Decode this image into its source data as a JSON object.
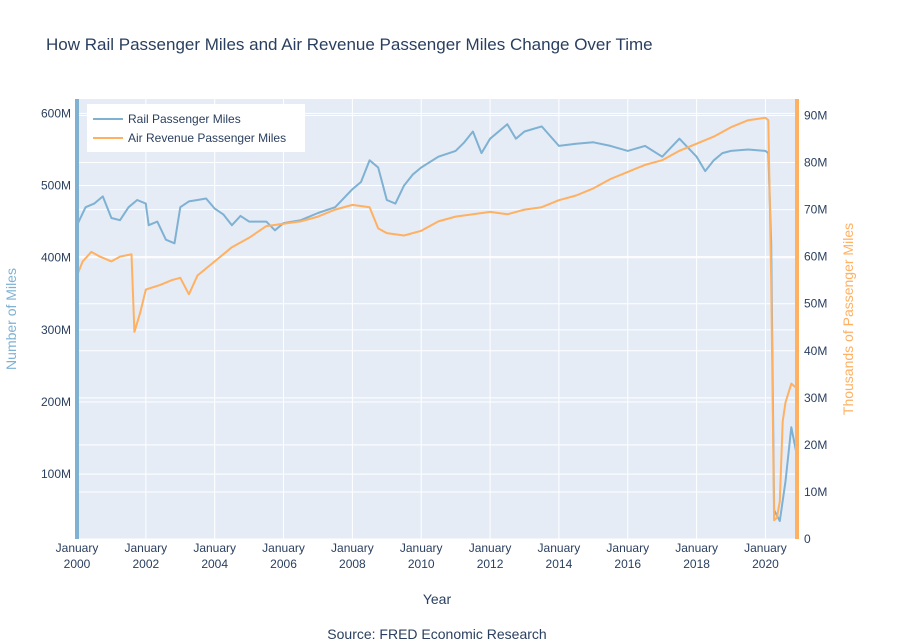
{
  "chart_data": {
    "type": "line",
    "title": "How Rail Passenger Miles and Air Revenue Passenger Miles Change Over Time",
    "xlabel": "Year",
    "ylabel_left": "Number of Miles",
    "ylabel_right": "Thousands of Passenger Miles",
    "source": "Source: FRED Economic Research",
    "x_range": [
      "2000-01",
      "2020-12"
    ],
    "y_left_range": [
      10000000,
      620000000
    ],
    "y_right_range": [
      0,
      93500000
    ],
    "x_ticks": [
      {
        "year": 2000,
        "month": "January",
        "year_label": "2000"
      },
      {
        "year": 2002,
        "month": "January",
        "year_label": "2002"
      },
      {
        "year": 2004,
        "month": "January",
        "year_label": "2004"
      },
      {
        "year": 2006,
        "month": "January",
        "year_label": "2006"
      },
      {
        "year": 2008,
        "month": "January",
        "year_label": "2008"
      },
      {
        "year": 2010,
        "month": "January",
        "year_label": "2010"
      },
      {
        "year": 2012,
        "month": "January",
        "year_label": "2012"
      },
      {
        "year": 2014,
        "month": "January",
        "year_label": "2014"
      },
      {
        "year": 2016,
        "month": "January",
        "year_label": "2016"
      },
      {
        "year": 2018,
        "month": "January",
        "year_label": "2018"
      },
      {
        "year": 2020,
        "month": "January",
        "year_label": "2020"
      }
    ],
    "y_left_ticks": [
      {
        "value": 100000000,
        "label": "100M"
      },
      {
        "value": 200000000,
        "label": "200M"
      },
      {
        "value": 300000000,
        "label": "300M"
      },
      {
        "value": 400000000,
        "label": "400M"
      },
      {
        "value": 500000000,
        "label": "500M"
      },
      {
        "value": 600000000,
        "label": "600M"
      }
    ],
    "y_right_ticks": [
      {
        "value": 0,
        "label": "0"
      },
      {
        "value": 10000000,
        "label": "10M"
      },
      {
        "value": 20000000,
        "label": "20M"
      },
      {
        "value": 30000000,
        "label": "30M"
      },
      {
        "value": 40000000,
        "label": "40M"
      },
      {
        "value": 50000000,
        "label": "50M"
      },
      {
        "value": 60000000,
        "label": "60M"
      },
      {
        "value": 70000000,
        "label": "70M"
      },
      {
        "value": 80000000,
        "label": "80M"
      },
      {
        "value": 90000000,
        "label": "90M"
      }
    ],
    "grid": true,
    "legend": "top-left",
    "colors": {
      "rail": "#7fb1d3",
      "air": "#ffb061",
      "plot_bg": "#e5ecf6",
      "grid": "#ffffff",
      "text": "#2a3f5f"
    },
    "series": [
      {
        "name": "Rail Passenger Miles",
        "axis": "left",
        "points": [
          [
            "2000-01",
            445000000
          ],
          [
            "2000-04",
            470000000
          ],
          [
            "2000-07",
            475000000
          ],
          [
            "2000-10",
            485000000
          ],
          [
            "2001-01",
            455000000
          ],
          [
            "2001-04",
            452000000
          ],
          [
            "2001-07",
            470000000
          ],
          [
            "2001-10",
            480000000
          ],
          [
            "2002-01",
            475000000
          ],
          [
            "2002-02",
            445000000
          ],
          [
            "2002-05",
            450000000
          ],
          [
            "2002-08",
            425000000
          ],
          [
            "2002-11",
            420000000
          ],
          [
            "2003-01",
            470000000
          ],
          [
            "2003-04",
            478000000
          ],
          [
            "2003-07",
            480000000
          ],
          [
            "2003-10",
            482000000
          ],
          [
            "2004-01",
            468000000
          ],
          [
            "2004-04",
            460000000
          ],
          [
            "2004-07",
            445000000
          ],
          [
            "2004-10",
            458000000
          ],
          [
            "2005-01",
            450000000
          ],
          [
            "2005-07",
            450000000
          ],
          [
            "2005-10",
            438000000
          ],
          [
            "2006-01",
            448000000
          ],
          [
            "2006-07",
            452000000
          ],
          [
            "2007-01",
            462000000
          ],
          [
            "2007-07",
            470000000
          ],
          [
            "2008-01",
            495000000
          ],
          [
            "2008-04",
            505000000
          ],
          [
            "2008-07",
            535000000
          ],
          [
            "2008-10",
            525000000
          ],
          [
            "2009-01",
            480000000
          ],
          [
            "2009-04",
            475000000
          ],
          [
            "2009-07",
            500000000
          ],
          [
            "2009-10",
            515000000
          ],
          [
            "2010-01",
            525000000
          ],
          [
            "2010-07",
            540000000
          ],
          [
            "2011-01",
            548000000
          ],
          [
            "2011-04",
            560000000
          ],
          [
            "2011-07",
            575000000
          ],
          [
            "2011-10",
            545000000
          ],
          [
            "2012-01",
            565000000
          ],
          [
            "2012-04",
            575000000
          ],
          [
            "2012-07",
            585000000
          ],
          [
            "2012-10",
            565000000
          ],
          [
            "2013-01",
            575000000
          ],
          [
            "2013-07",
            582000000
          ],
          [
            "2014-01",
            555000000
          ],
          [
            "2014-07",
            558000000
          ],
          [
            "2015-01",
            560000000
          ],
          [
            "2015-07",
            555000000
          ],
          [
            "2016-01",
            548000000
          ],
          [
            "2016-07",
            555000000
          ],
          [
            "2017-01",
            540000000
          ],
          [
            "2017-07",
            565000000
          ],
          [
            "2018-01",
            540000000
          ],
          [
            "2018-04",
            520000000
          ],
          [
            "2018-07",
            535000000
          ],
          [
            "2018-10",
            545000000
          ],
          [
            "2019-01",
            548000000
          ],
          [
            "2019-07",
            550000000
          ],
          [
            "2020-01",
            548000000
          ],
          [
            "2020-02",
            545000000
          ],
          [
            "2020-03",
            420000000
          ],
          [
            "2020-04",
            50000000
          ],
          [
            "2020-06",
            35000000
          ],
          [
            "2020-08",
            90000000
          ],
          [
            "2020-10",
            165000000
          ],
          [
            "2020-12",
            125000000
          ]
        ]
      },
      {
        "name": "Air Revenue Passenger Miles",
        "axis": "right",
        "points": [
          [
            "2000-01",
            56000000
          ],
          [
            "2000-03",
            59000000
          ],
          [
            "2000-06",
            61000000
          ],
          [
            "2000-09",
            60000000
          ],
          [
            "2001-01",
            59000000
          ],
          [
            "2001-04",
            60000000
          ],
          [
            "2001-08",
            60500000
          ],
          [
            "2001-09",
            44000000
          ],
          [
            "2001-11",
            48000000
          ],
          [
            "2002-01",
            53000000
          ],
          [
            "2002-06",
            54000000
          ],
          [
            "2002-10",
            55000000
          ],
          [
            "2003-01",
            55500000
          ],
          [
            "2003-04",
            52000000
          ],
          [
            "2003-07",
            56000000
          ],
          [
            "2004-01",
            59000000
          ],
          [
            "2004-07",
            62000000
          ],
          [
            "2005-01",
            64000000
          ],
          [
            "2005-07",
            66500000
          ],
          [
            "2006-01",
            67000000
          ],
          [
            "2006-07",
            67500000
          ],
          [
            "2007-01",
            68500000
          ],
          [
            "2007-07",
            70000000
          ],
          [
            "2008-01",
            71000000
          ],
          [
            "2008-07",
            70500000
          ],
          [
            "2008-10",
            66000000
          ],
          [
            "2009-01",
            65000000
          ],
          [
            "2009-07",
            64500000
          ],
          [
            "2010-01",
            65500000
          ],
          [
            "2010-07",
            67500000
          ],
          [
            "2011-01",
            68500000
          ],
          [
            "2011-07",
            69000000
          ],
          [
            "2012-01",
            69500000
          ],
          [
            "2012-07",
            69000000
          ],
          [
            "2013-01",
            70000000
          ],
          [
            "2013-07",
            70500000
          ],
          [
            "2014-01",
            72000000
          ],
          [
            "2014-07",
            73000000
          ],
          [
            "2015-01",
            74500000
          ],
          [
            "2015-07",
            76500000
          ],
          [
            "2016-01",
            78000000
          ],
          [
            "2016-07",
            79500000
          ],
          [
            "2017-01",
            80500000
          ],
          [
            "2017-07",
            82500000
          ],
          [
            "2018-01",
            84000000
          ],
          [
            "2018-07",
            85500000
          ],
          [
            "2019-01",
            87500000
          ],
          [
            "2019-07",
            89000000
          ],
          [
            "2020-01",
            89500000
          ],
          [
            "2020-02",
            89000000
          ],
          [
            "2020-03",
            55000000
          ],
          [
            "2020-04",
            4000000
          ],
          [
            "2020-05",
            4500000
          ],
          [
            "2020-06",
            8000000
          ],
          [
            "2020-07",
            25000000
          ],
          [
            "2020-08",
            29000000
          ],
          [
            "2020-10",
            33000000
          ],
          [
            "2020-12",
            32000000
          ]
        ]
      }
    ]
  }
}
